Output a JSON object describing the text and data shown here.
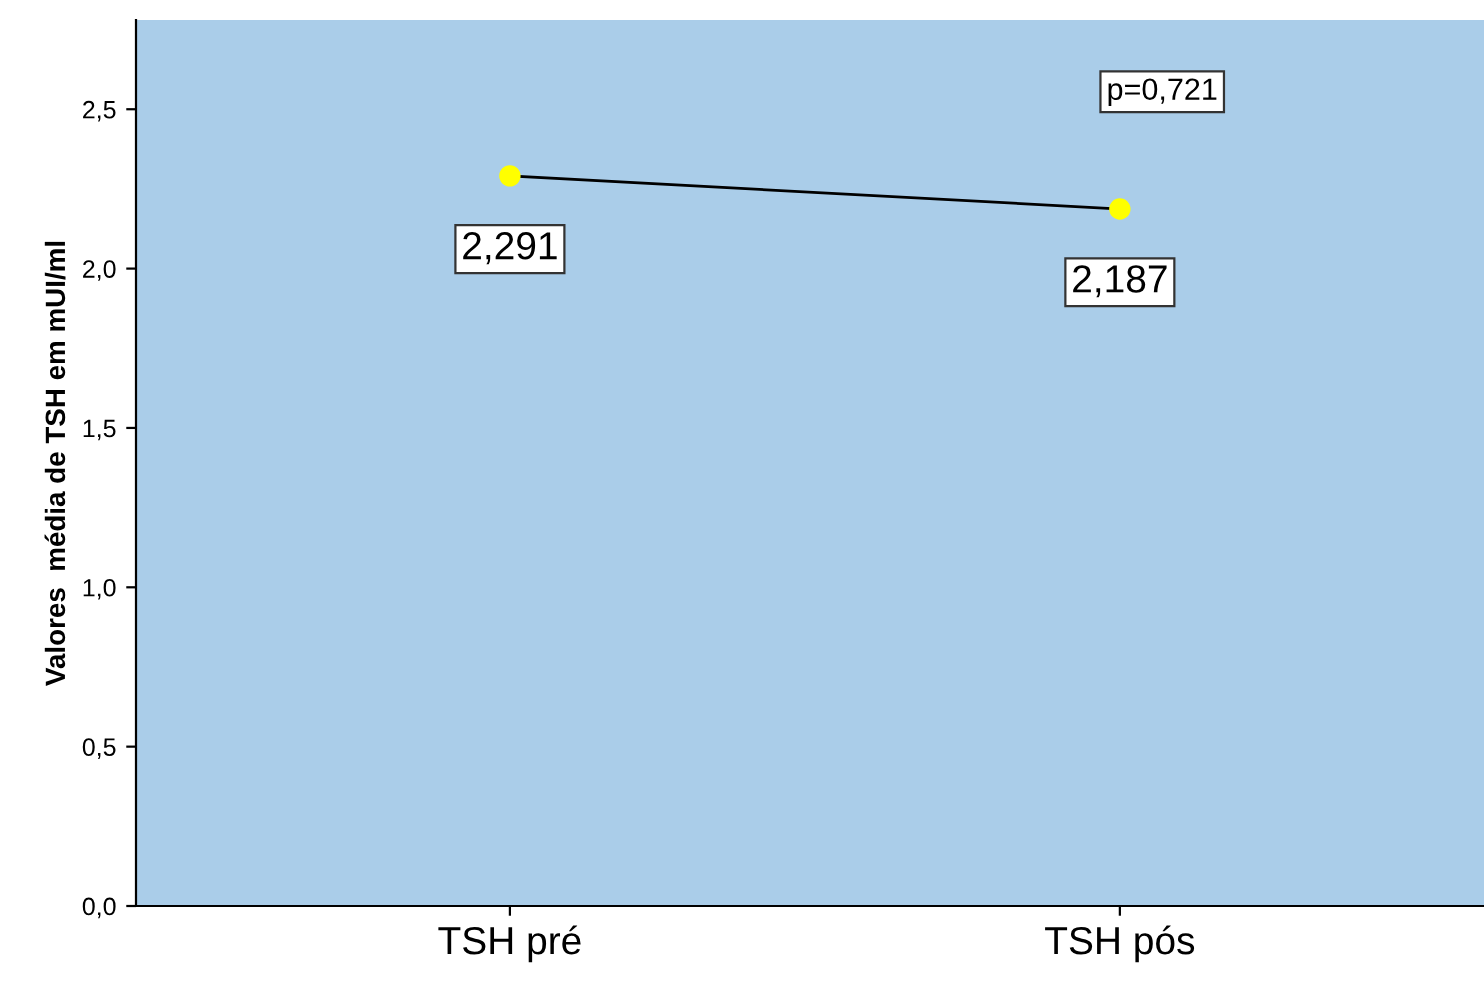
{
  "chart_data": {
    "type": "line",
    "ylabel": "Valores  média de TSH em mUI/ml",
    "categories": [
      "TSH pré",
      "TSH pós"
    ],
    "series": [
      {
        "color": "#000000",
        "colors": [
          "#ffff00",
          "#ffff00"
        ],
        "values": [
          2.291,
          2.187
        ],
        "value_labels": [
          "2,291",
          "2,187"
        ]
      }
    ],
    "ylim": [
      0,
      2.78
    ],
    "yticks": [
      {
        "value": 0,
        "label": "0,0"
      },
      {
        "value": 0.5,
        "label": "0,5"
      },
      {
        "value": 1,
        "label": "1,0"
      },
      {
        "value": 1.5,
        "label": "1,5"
      },
      {
        "value": 2,
        "label": "2,0"
      },
      {
        "value": 2.5,
        "label": "2,5"
      }
    ],
    "annotations": [
      "p=0,721"
    ],
    "marker": "circle",
    "line_style": "solid",
    "grid": false,
    "legend": false
  }
}
